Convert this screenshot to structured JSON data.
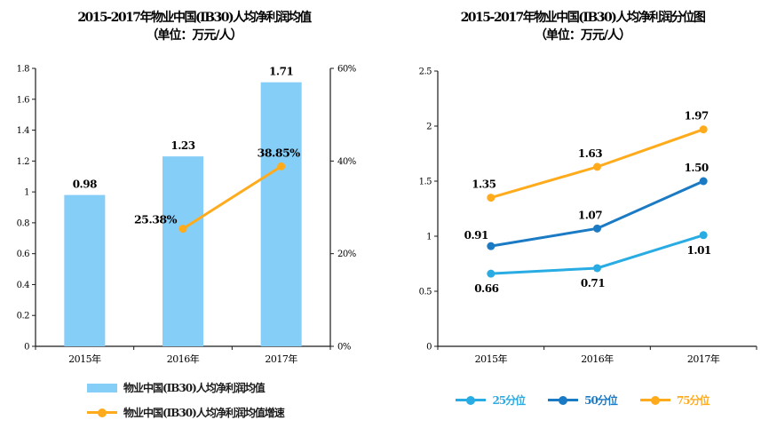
{
  "figure": {
    "background": "#ffffff",
    "text_color": "#000000"
  },
  "chart_data": [
    {
      "type": "bar",
      "title": "2015-2017年物业中国(IB30)人均净利润均值",
      "subtitle": "（单位：万元/人）",
      "categories": [
        "2015年",
        "2016年",
        "2017年"
      ],
      "series": [
        {
          "name": "物业中国(IB30)人均净利润均值",
          "type": "bar",
          "axis": "left",
          "values": [
            0.98,
            1.23,
            1.71
          ],
          "display": [
            "0.98",
            "1.23",
            "1.71"
          ],
          "color": "#85CEF8"
        },
        {
          "name": "物业中国(IB30)人均净利润均值增速",
          "type": "line",
          "axis": "right",
          "values": [
            null,
            25.38,
            38.85
          ],
          "display": [
            "",
            "25.38%",
            "38.85%"
          ],
          "label_pos": [
            "",
            "left",
            "above"
          ],
          "color": "#FFAB1C"
        }
      ],
      "left_axis": {
        "min": 0,
        "max": 1.8,
        "step": 0.2,
        "ticks": [
          "0",
          "0.2",
          "0.4",
          "0.6",
          "0.8",
          "1",
          "1.2",
          "1.4",
          "1.6",
          "1.8"
        ]
      },
      "right_axis": {
        "min": 0,
        "max": 60,
        "step": 20,
        "ticks": [
          "0%",
          "20%",
          "40%",
          "60%"
        ]
      },
      "grid": "off",
      "legend_position": "bottom"
    },
    {
      "type": "line",
      "title": "2015-2017年物业中国(IB30)人均净利润分位图",
      "subtitle": "（单位：万元/人）",
      "categories": [
        "2015年",
        "2016年",
        "2017年"
      ],
      "series": [
        {
          "name": "25分位",
          "values": [
            0.66,
            0.71,
            1.01
          ],
          "display": [
            "0.66",
            "0.71",
            "1.01"
          ],
          "label_pos": [
            "below",
            "below",
            "below"
          ],
          "color": "#29ACE3"
        },
        {
          "name": "50分位",
          "values": [
            0.91,
            1.07,
            1.5
          ],
          "display": [
            "0.91",
            "1.07",
            "1.50"
          ],
          "label_pos": [
            "left",
            "above",
            "above"
          ],
          "color": "#1B7AC4"
        },
        {
          "name": "75分位",
          "values": [
            1.35,
            1.63,
            1.97
          ],
          "display": [
            "1.35",
            "1.63",
            "1.97"
          ],
          "label_pos": [
            "above",
            "above",
            "above"
          ],
          "color": "#FFAB1C"
        }
      ],
      "y_axis": {
        "min": 0,
        "max": 2.5,
        "step": 0.5,
        "ticks": [
          "0",
          "0.5",
          "1",
          "1.5",
          "2",
          "2.5"
        ]
      },
      "grid": "off",
      "legend_position": "bottom"
    }
  ]
}
